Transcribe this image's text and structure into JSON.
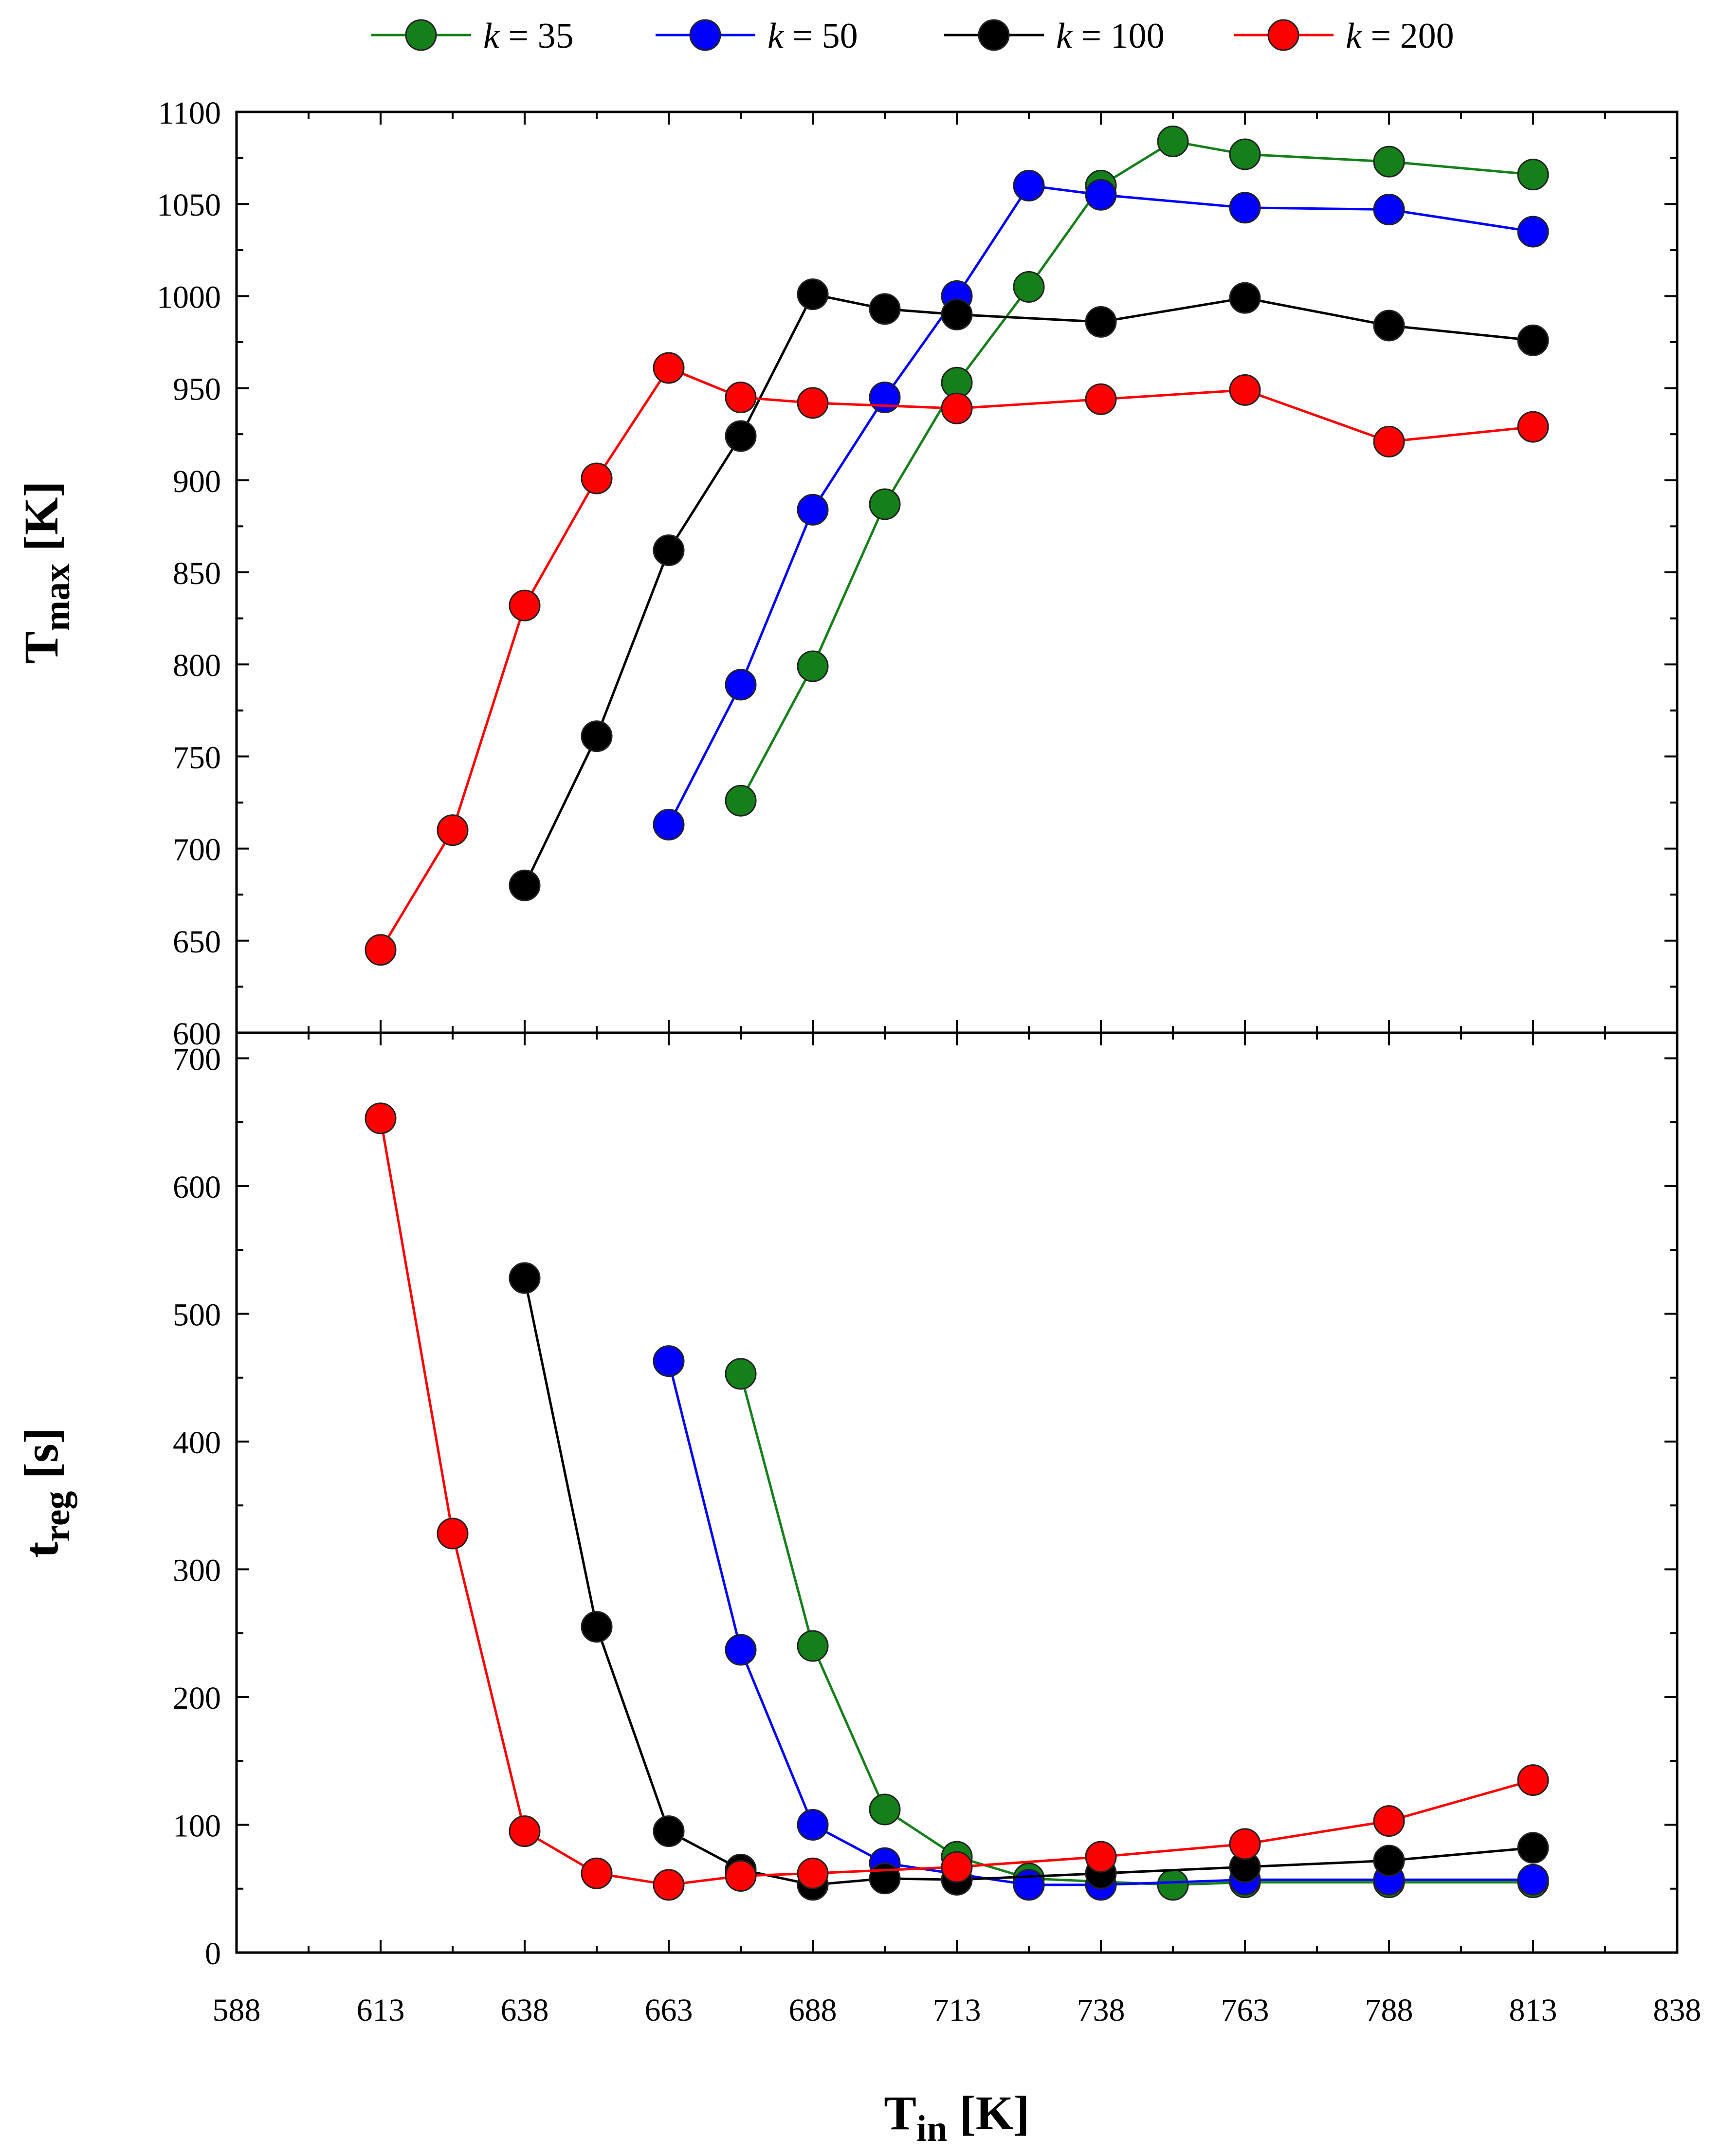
{
  "chart_data": [
    {
      "type": "line",
      "panel": "top",
      "ylabel_main": "T",
      "ylabel_sub": "max",
      "ylabel_unit": " [K]",
      "ylim": [
        600,
        1100
      ],
      "yticks": [
        600,
        650,
        700,
        750,
        800,
        850,
        900,
        950,
        1000,
        1050,
        1100
      ],
      "xlim": [
        588,
        838
      ],
      "series": [
        {
          "name": "k = 35",
          "color": "#15801a",
          "x": [
            675.5,
            688,
            700.5,
            713,
            725.5,
            738,
            750.5,
            763,
            788,
            813
          ],
          "y": [
            726,
            799,
            887,
            953,
            1005,
            1060,
            1084,
            1077,
            1073,
            1066
          ]
        },
        {
          "name": "k = 50",
          "color": "#0000ff",
          "x": [
            663,
            675.5,
            688,
            700.5,
            713,
            725.5,
            738,
            763,
            788,
            813
          ],
          "y": [
            713,
            789,
            884,
            945,
            1000,
            1060,
            1055,
            1048,
            1047,
            1035
          ]
        },
        {
          "name": "k = 100",
          "color": "#000000",
          "x": [
            638,
            650.5,
            663,
            675.5,
            688,
            700.5,
            713,
            738,
            763,
            788,
            813
          ],
          "y": [
            680,
            761,
            862,
            924,
            1001,
            993,
            990,
            986,
            999,
            984,
            976
          ]
        },
        {
          "name": "k = 200",
          "color": "#ff0000",
          "x": [
            613,
            625.5,
            638,
            650.5,
            663,
            675.5,
            688,
            713,
            738,
            763,
            788,
            813
          ],
          "y": [
            645,
            710,
            832,
            901,
            961,
            945,
            942,
            939,
            944,
            949,
            921,
            929
          ]
        }
      ]
    },
    {
      "type": "line",
      "panel": "bottom",
      "ylabel_main": "t",
      "ylabel_sub": "reg",
      "ylabel_unit": " [s]",
      "xlabel_main": "T",
      "xlabel_sub": "in",
      "xlabel_unit": " [K]",
      "ylim": [
        0,
        720
      ],
      "yticks": [
        0,
        100,
        200,
        300,
        400,
        500,
        600,
        700
      ],
      "xlim": [
        588,
        838
      ],
      "xticks": [
        588,
        613,
        638,
        663,
        688,
        713,
        738,
        763,
        788,
        813,
        838
      ],
      "series": [
        {
          "name": "k = 35",
          "color": "#15801a",
          "x": [
            675.5,
            688,
            700.5,
            713,
            725.5,
            750.5,
            763,
            788,
            813
          ],
          "y": [
            453,
            240,
            112,
            75,
            58,
            53,
            55,
            55,
            55
          ]
        },
        {
          "name": "k = 50",
          "color": "#0000ff",
          "x": [
            663,
            675.5,
            688,
            700.5,
            725.5,
            738,
            763,
            788,
            813
          ],
          "y": [
            463,
            237,
            100,
            70,
            53,
            53,
            57,
            57,
            57
          ]
        },
        {
          "name": "k = 100",
          "color": "#000000",
          "x": [
            638,
            650.5,
            663,
            675.5,
            688,
            700.5,
            713,
            738,
            763,
            788,
            813
          ],
          "y": [
            528,
            255,
            95,
            65,
            53,
            58,
            57,
            62,
            67,
            72,
            82
          ]
        },
        {
          "name": "k = 200",
          "color": "#ff0000",
          "x": [
            613,
            625.5,
            638,
            650.5,
            663,
            675.5,
            688,
            713,
            738,
            763,
            788,
            813
          ],
          "y": [
            653,
            328,
            95,
            62,
            53,
            60,
            62,
            67,
            75,
            85,
            103,
            135
          ]
        }
      ]
    }
  ],
  "legend": {
    "items": [
      {
        "k_label": "k",
        "eq": " = 35",
        "color": "#15801a"
      },
      {
        "k_label": "k",
        "eq": " = 50",
        "color": "#0000ff"
      },
      {
        "k_label": "k",
        "eq": " = 100",
        "color": "#000000"
      },
      {
        "k_label": "k",
        "eq": " = 200",
        "color": "#ff0000"
      }
    ]
  }
}
